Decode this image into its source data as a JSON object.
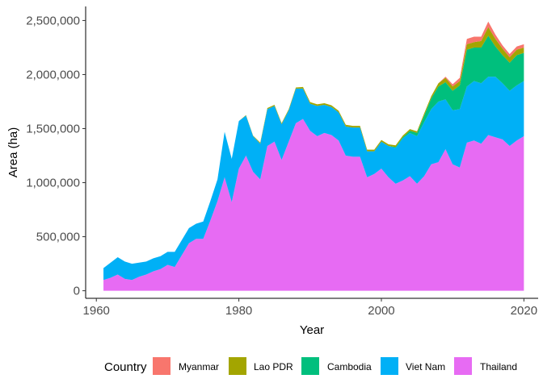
{
  "chart_data": {
    "type": "area",
    "stacked": true,
    "xlabel": "Year",
    "ylabel": "Area (ha)",
    "xlim": [
      1958.5,
      2022
    ],
    "ylim": [
      -70000,
      2630000
    ],
    "x_ticks": [
      1960,
      1980,
      2000,
      2020
    ],
    "y_ticks": [
      0,
      500000,
      1000000,
      1500000,
      2000000,
      2500000
    ],
    "x_tick_labels": [
      "1960",
      "1980",
      "2000",
      "2020"
    ],
    "y_tick_labels": [
      "0",
      "500,000",
      "1,000,000",
      "1,500,000",
      "2,000,000",
      "2,500,000"
    ],
    "grid": false,
    "legend": {
      "title": "Country",
      "position": "bottom",
      "order": [
        "Myanmar",
        "Lao PDR",
        "Cambodia",
        "Viet Nam",
        "Thailand"
      ]
    },
    "x": [
      1961,
      1962,
      1963,
      1964,
      1965,
      1966,
      1967,
      1968,
      1969,
      1970,
      1971,
      1972,
      1973,
      1974,
      1975,
      1976,
      1977,
      1978,
      1979,
      1980,
      1981,
      1982,
      1983,
      1984,
      1985,
      1986,
      1987,
      1988,
      1989,
      1990,
      1991,
      1992,
      1993,
      1994,
      1995,
      1996,
      1997,
      1998,
      1999,
      2000,
      2001,
      2002,
      2003,
      2004,
      2005,
      2006,
      2007,
      2008,
      2009,
      2010,
      2011,
      2012,
      2013,
      2014,
      2015,
      2016,
      2017,
      2018,
      2019,
      2020
    ],
    "series": [
      {
        "name": "Thailand",
        "color": "#E76BF3",
        "values": [
          100000,
          120000,
          150000,
          110000,
          100000,
          130000,
          150000,
          180000,
          200000,
          240000,
          220000,
          330000,
          440000,
          480000,
          480000,
          650000,
          830000,
          1050000,
          820000,
          1130000,
          1250000,
          1100000,
          1030000,
          1340000,
          1380000,
          1210000,
          1380000,
          1550000,
          1590000,
          1480000,
          1430000,
          1460000,
          1440000,
          1390000,
          1250000,
          1240000,
          1240000,
          1050000,
          1080000,
          1130000,
          1050000,
          990000,
          1020000,
          1060000,
          990000,
          1060000,
          1170000,
          1190000,
          1310000,
          1170000,
          1140000,
          1370000,
          1390000,
          1360000,
          1440000,
          1420000,
          1400000,
          1340000,
          1390000,
          1430000
        ]
      },
      {
        "name": "Viet Nam",
        "color": "#00B0F6",
        "values": [
          110000,
          140000,
          160000,
          160000,
          150000,
          130000,
          120000,
          120000,
          120000,
          120000,
          140000,
          140000,
          140000,
          140000,
          160000,
          180000,
          200000,
          420000,
          400000,
          440000,
          370000,
          330000,
          330000,
          340000,
          330000,
          330000,
          290000,
          320000,
          280000,
          250000,
          280000,
          260000,
          260000,
          260000,
          270000,
          270000,
          270000,
          240000,
          210000,
          250000,
          290000,
          330000,
          390000,
          400000,
          440000,
          500000,
          510000,
          560000,
          460000,
          500000,
          540000,
          520000,
          550000,
          560000,
          540000,
          560000,
          520000,
          510000,
          510000,
          510000
        ]
      },
      {
        "name": "Cambodia",
        "color": "#00BF7D",
        "values": [
          0,
          0,
          0,
          0,
          0,
          0,
          0,
          0,
          0,
          0,
          0,
          0,
          0,
          0,
          0,
          0,
          0,
          0,
          0,
          0,
          0,
          0,
          0,
          0,
          0,
          0,
          0,
          0,
          0,
          0,
          0,
          0,
          0,
          0,
          0,
          0,
          0,
          0,
          0,
          0,
          0,
          10000,
          10000,
          20000,
          30000,
          60000,
          100000,
          140000,
          160000,
          180000,
          220000,
          340000,
          310000,
          330000,
          380000,
          280000,
          260000,
          260000,
          280000,
          260000
        ]
      },
      {
        "name": "Lao PDR",
        "color": "#A3A500",
        "values": [
          0,
          0,
          0,
          0,
          0,
          0,
          0,
          0,
          0,
          0,
          0,
          0,
          0,
          0,
          0,
          0,
          0,
          0,
          0,
          0,
          5000,
          5000,
          10000,
          10000,
          10000,
          10000,
          10000,
          10000,
          15000,
          15000,
          15000,
          15000,
          15000,
          15000,
          15000,
          15000,
          15000,
          15000,
          15000,
          15000,
          15000,
          15000,
          15000,
          15000,
          15000,
          20000,
          20000,
          30000,
          40000,
          40000,
          40000,
          50000,
          50000,
          60000,
          80000,
          70000,
          60000,
          50000,
          50000,
          50000
        ]
      },
      {
        "name": "Myanmar",
        "color": "#F8766D",
        "values": [
          0,
          0,
          0,
          0,
          0,
          0,
          0,
          0,
          0,
          0,
          0,
          0,
          0,
          0,
          0,
          0,
          0,
          0,
          0,
          0,
          0,
          0,
          0,
          0,
          0,
          0,
          0,
          0,
          0,
          0,
          0,
          0,
          0,
          0,
          0,
          0,
          0,
          0,
          0,
          0,
          0,
          0,
          0,
          0,
          0,
          0,
          0,
          0,
          10000,
          20000,
          30000,
          50000,
          50000,
          40000,
          50000,
          40000,
          30000,
          30000,
          30000,
          30000
        ]
      }
    ]
  }
}
